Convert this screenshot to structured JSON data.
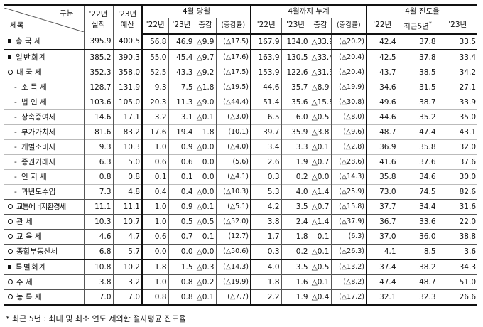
{
  "header": {
    "corner_top": "구분",
    "corner_bottom": "세목",
    "col_budget22": "'22년\n실적",
    "col_budget23": "'23년\n예산",
    "group_april": "4월 당월",
    "group_cumulative": "4월까지 누계",
    "group_progress": "4월 진도율",
    "sub_22": "'22년",
    "sub_23": "'23년",
    "sub_change": "증감",
    "sub_pct": "(증감률)",
    "sub_recent5": "최근5년",
    "recent5_mark": "*"
  },
  "rows": [
    {
      "bullet": "square",
      "label": "총 국 세",
      "v": [
        "395.9",
        "400.5",
        "56.8",
        "46.9",
        "△9.9",
        "(△17.5)",
        "167.9",
        "134.0",
        "△33.9",
        "(△20.2)",
        "42.4",
        "37.8",
        "33.5"
      ]
    },
    {
      "bullet": "square",
      "label": "일 반 회 계",
      "v": [
        "385.2",
        "390.3",
        "55.0",
        "45.4",
        "△9.7",
        "(△17.6)",
        "163.9",
        "130.5",
        "△33.4",
        "(△20.4)",
        "42.5",
        "37.8",
        "33.4"
      ]
    },
    {
      "bullet": "circle",
      "label": "내 국 세",
      "v": [
        "352.3",
        "358.0",
        "52.5",
        "43.3",
        "△9.2",
        "(△17.5)",
        "153.9",
        "122.6",
        "△31.3",
        "(△20.4)",
        "43.7",
        "38.5",
        "34.2"
      ]
    },
    {
      "bullet": "dash",
      "label": "소 득 세",
      "v": [
        "128.7",
        "131.9",
        "9.3",
        "7.5",
        "△1.8",
        "(△19.5)",
        "44.6",
        "35.7",
        "△8.9",
        "(△19.9)",
        "34.6",
        "31.5",
        "27.1"
      ]
    },
    {
      "bullet": "dash",
      "label": "법 인 세",
      "v": [
        "103.6",
        "105.0",
        "20.3",
        "11.3",
        "△9.0",
        "(△44.4)",
        "51.4",
        "35.6",
        "△15.8",
        "(△30.8)",
        "49.6",
        "38.7",
        "33.9"
      ]
    },
    {
      "bullet": "dash",
      "label": "상속증여세",
      "v": [
        "14.6",
        "17.1",
        "3.2",
        "3.1",
        "△0.1",
        "(△3.0)",
        "6.5",
        "6.0",
        "△0.5",
        "(△8.0)",
        "44.6",
        "35.2",
        "35.0"
      ]
    },
    {
      "bullet": "dash",
      "label": "부가가치세",
      "v": [
        "81.6",
        "83.2",
        "17.6",
        "19.4",
        "1.8",
        "(10.1)",
        "39.7",
        "35.9",
        "△3.8",
        "(△9.6)",
        "48.7",
        "47.4",
        "43.1"
      ]
    },
    {
      "bullet": "dash",
      "label": "개별소비세",
      "v": [
        "9.3",
        "10.3",
        "1.0",
        "0.9",
        "△0.0",
        "(△4.0)",
        "3.4",
        "3.3",
        "△0.1",
        "(△2.8)",
        "36.9",
        "35.8",
        "32.0"
      ]
    },
    {
      "bullet": "dash",
      "label": "증권거래세",
      "v": [
        "6.3",
        "5.0",
        "0.6",
        "0.6",
        "0.0",
        "(5.6)",
        "2.6",
        "1.9",
        "△0.7",
        "(△28.6)",
        "41.6",
        "37.6",
        "37.6"
      ]
    },
    {
      "bullet": "dash",
      "label": "인 지 세",
      "v": [
        "0.8",
        "0.8",
        "0.1",
        "0.1",
        "0.0",
        "(△4.1)",
        "0.3",
        "0.2",
        "△0.0",
        "(△14.3)",
        "35.8",
        "34.6",
        "30.0"
      ]
    },
    {
      "bullet": "dash",
      "label": "과년도수입",
      "v": [
        "7.3",
        "4.8",
        "0.4",
        "0.4",
        "△0.0",
        "(△10.3)",
        "5.3",
        "4.0",
        "△1.4",
        "(△25.9)",
        "73.0",
        "74.5",
        "82.6"
      ]
    },
    {
      "bullet": "circle",
      "label": "교통에너지환경세",
      "v": [
        "11.1",
        "11.1",
        "1.0",
        "0.9",
        "△0.1",
        "(△5.1)",
        "4.2",
        "3.5",
        "△0.7",
        "(△15.8)",
        "37.7",
        "34.4",
        "31.6"
      ]
    },
    {
      "bullet": "circle",
      "label": "관 세",
      "v": [
        "10.3",
        "10.7",
        "1.0",
        "0.5",
        "△0.5",
        "(△52.0)",
        "3.8",
        "2.4",
        "△1.4",
        "(△37.9)",
        "36.7",
        "33.6",
        "22.0"
      ]
    },
    {
      "bullet": "circle",
      "label": "교 육 세",
      "v": [
        "4.6",
        "4.7",
        "0.6",
        "0.7",
        "0.1",
        "(12.7)",
        "1.7",
        "1.8",
        "0.1",
        "(6.3)",
        "37.0",
        "36.0",
        "38.8"
      ]
    },
    {
      "bullet": "circle",
      "label": "종합부동산세",
      "v": [
        "6.8",
        "5.7",
        "0.0",
        "0.0",
        "△0.0",
        "(△50.6)",
        "0.3",
        "0.2",
        "△0.1",
        "(△26.3)",
        "4.1",
        "8.5",
        "3.6"
      ]
    },
    {
      "bullet": "square",
      "label": "특 별 회 계",
      "v": [
        "10.8",
        "10.2",
        "1.8",
        "1.5",
        "△0.3",
        "(△14.3)",
        "4.0",
        "3.5",
        "△0.5",
        "(△13.2)",
        "37.4",
        "38.2",
        "34.3"
      ]
    },
    {
      "bullet": "circle",
      "label": "주 세",
      "v": [
        "3.8",
        "3.2",
        "1.0",
        "0.8",
        "△0.2",
        "(△19.9)",
        "1.8",
        "1.6",
        "△0.1",
        "(△8.2)",
        "47.4",
        "48.7",
        "51.0"
      ]
    },
    {
      "bullet": "circle",
      "label": "농 특 세",
      "v": [
        "7.0",
        "7.0",
        "0.8",
        "0.8",
        "△0.1",
        "(△7.7)",
        "2.2",
        "1.9",
        "△0.4",
        "(△17.2)",
        "32.1",
        "32.3",
        "26.6"
      ]
    }
  ],
  "footnote": "* 최근 5년 : 최대 및 최소 연도 제외한 절사평균 진도율"
}
